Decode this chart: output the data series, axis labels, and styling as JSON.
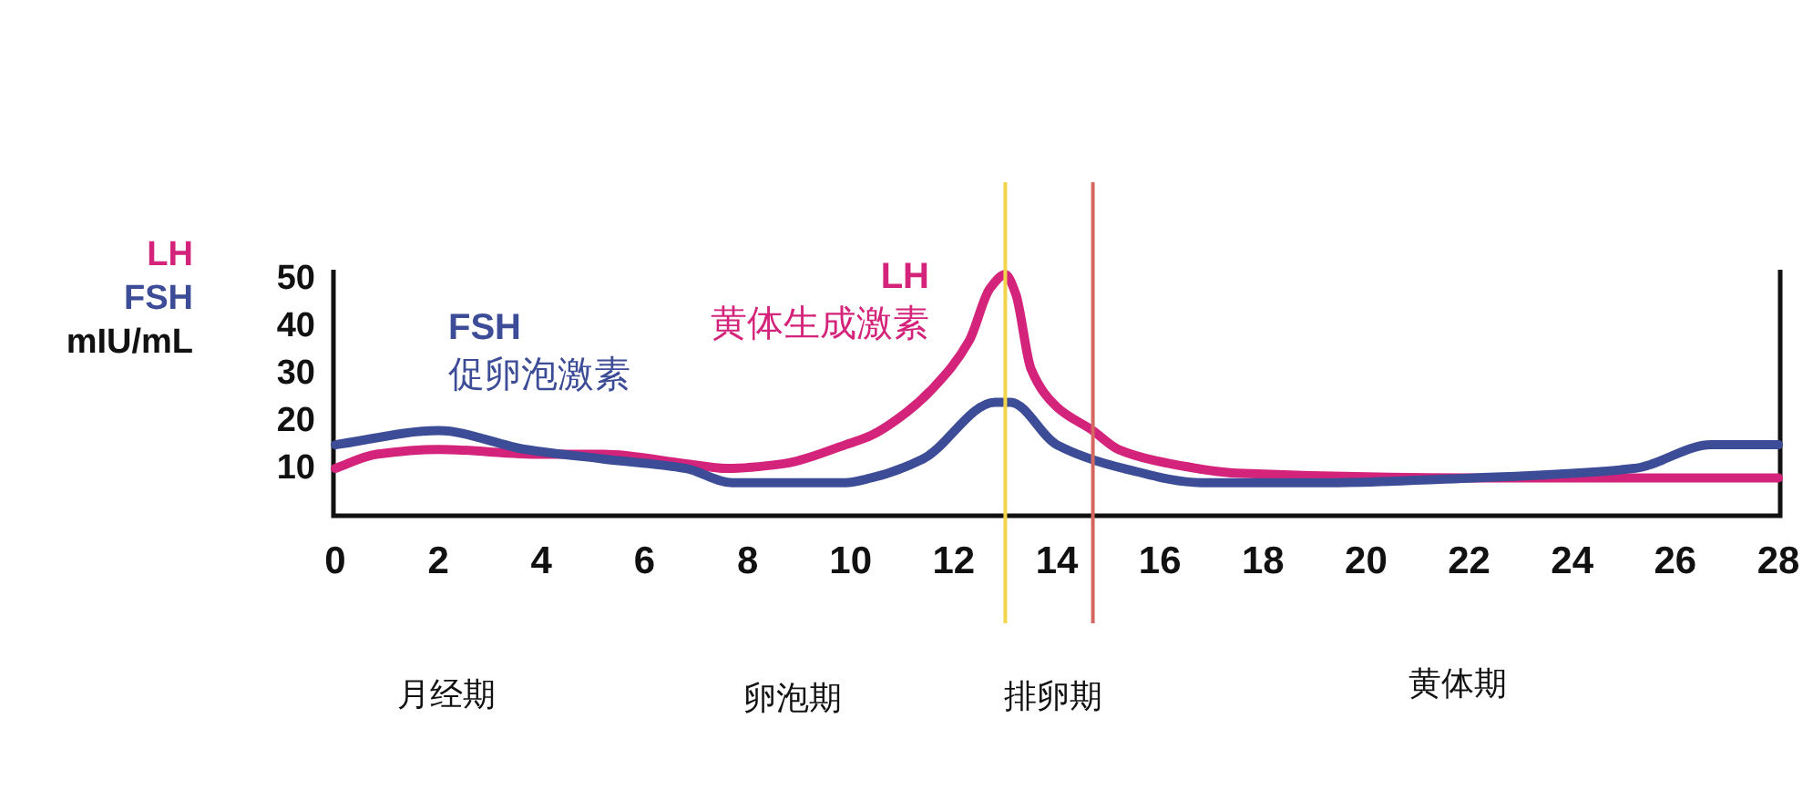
{
  "chart_data": {
    "type": "line",
    "ylabel": "LH\nFSH\nmIU/mL",
    "xlim": [
      0,
      28
    ],
    "ylim": [
      0,
      52
    ],
    "xticks": [
      0,
      2,
      4,
      6,
      8,
      10,
      12,
      14,
      16,
      18,
      20,
      22,
      24,
      26,
      28
    ],
    "yticks": [
      10,
      20,
      30,
      40,
      50
    ],
    "series": [
      {
        "name": "LH\n黄体生成激素",
        "color": "#d4237a",
        "x": [
          0,
          0.8,
          2,
          4,
          5.2,
          6.8,
          7.6,
          8.7,
          9.9,
          10.4,
          11.1,
          11.6,
          12.3,
          12.7,
          13,
          13.2,
          13.5,
          14,
          14.7,
          15.2,
          16.2,
          17.5,
          22,
          28
        ],
        "values": [
          10,
          13,
          14,
          13,
          13,
          11,
          10,
          11,
          15,
          17,
          22,
          27,
          37,
          48,
          51,
          47,
          31,
          23,
          18,
          14,
          11,
          9,
          8,
          8
        ]
      },
      {
        "name": "FSH\n促卵泡激素",
        "color": "#3d4c97",
        "x": [
          0,
          2,
          3.7,
          5.2,
          6.8,
          7.7,
          9.9,
          10.4,
          11.4,
          12.8,
          13.1,
          14,
          15.3,
          16.8,
          19.2,
          22.1,
          25.2,
          26.7,
          28
        ],
        "values": [
          15,
          18,
          14,
          12,
          10,
          7,
          7,
          8,
          12,
          24,
          24,
          15,
          10,
          7,
          7,
          8,
          10,
          15,
          15
        ]
      }
    ],
    "ref_lines": [
      {
        "axis": "x",
        "value": 13,
        "color": "#f2d54a"
      },
      {
        "axis": "x",
        "value": 14.7,
        "color": "#d4675f"
      }
    ],
    "annotations": [
      "月经期",
      "卵泡期",
      "排卵期",
      "黄体期"
    ]
  }
}
